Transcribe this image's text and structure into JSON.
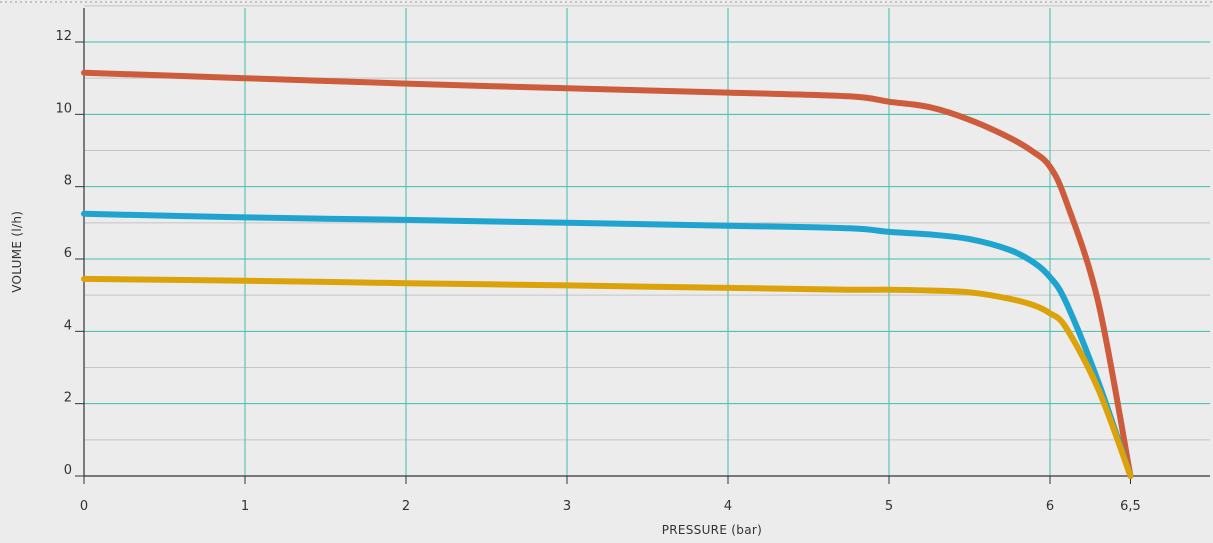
{
  "chart_data": {
    "type": "line",
    "xlabel": "PRESSURE  (bar)",
    "ylabel": "VOLUME  (l/h)",
    "xlim": [
      0,
      7
    ],
    "ylim": [
      0,
      13
    ],
    "x_ticks": [
      0,
      1,
      2,
      3,
      4,
      5,
      6,
      6.5
    ],
    "x_tick_labels": [
      "0",
      "1",
      "2",
      "3",
      "4",
      "5",
      "6",
      "6,5"
    ],
    "y_ticks": [
      0,
      2,
      4,
      6,
      8,
      10,
      12
    ],
    "y_tick_labels": [
      "0",
      "2",
      "4",
      "6",
      "8",
      "10",
      "12"
    ],
    "grid": true,
    "series": [
      {
        "color": "#cd5c3c",
        "points": [
          [
            0,
            11.15
          ],
          [
            1,
            11.0
          ],
          [
            2,
            10.85
          ],
          [
            3,
            10.72
          ],
          [
            4,
            10.6
          ],
          [
            4.75,
            10.5
          ],
          [
            5,
            10.35
          ],
          [
            5.25,
            10.2
          ],
          [
            5.5,
            9.85
          ],
          [
            5.75,
            9.35
          ],
          [
            5.9,
            8.95
          ],
          [
            6.0,
            8.55
          ],
          [
            6.1,
            7.6
          ],
          [
            6.3,
            4.8
          ],
          [
            6.5,
            0
          ]
        ]
      },
      {
        "color": "#1fa3cf",
        "points": [
          [
            0,
            7.25
          ],
          [
            1,
            7.15
          ],
          [
            2,
            7.08
          ],
          [
            3,
            7.0
          ],
          [
            4,
            6.92
          ],
          [
            4.75,
            6.85
          ],
          [
            5,
            6.75
          ],
          [
            5.25,
            6.68
          ],
          [
            5.5,
            6.55
          ],
          [
            5.75,
            6.25
          ],
          [
            5.9,
            5.9
          ],
          [
            6.0,
            5.5
          ],
          [
            6.1,
            4.8
          ],
          [
            6.3,
            2.6
          ],
          [
            6.5,
            0
          ]
        ]
      },
      {
        "color": "#dca20a",
        "points": [
          [
            0,
            5.45
          ],
          [
            1,
            5.4
          ],
          [
            2,
            5.33
          ],
          [
            3,
            5.27
          ],
          [
            4,
            5.2
          ],
          [
            4.75,
            5.15
          ],
          [
            5,
            5.15
          ],
          [
            5.25,
            5.13
          ],
          [
            5.5,
            5.08
          ],
          [
            5.75,
            4.9
          ],
          [
            5.9,
            4.72
          ],
          [
            6.0,
            4.5
          ],
          [
            6.1,
            4.1
          ],
          [
            6.3,
            2.4
          ],
          [
            6.5,
            0
          ]
        ]
      }
    ]
  }
}
